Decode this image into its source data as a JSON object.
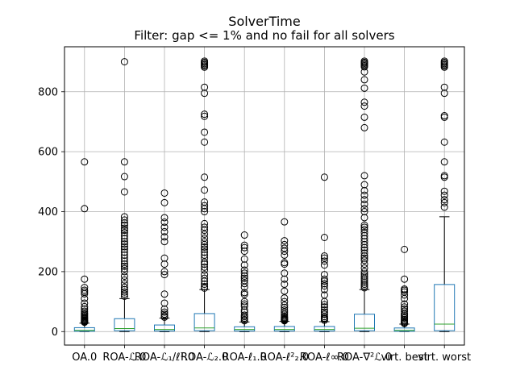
{
  "chart_data": {
    "type": "box",
    "title": "SolverTime",
    "subtitle": "Filter: gap <= 1% and no fail for all solvers",
    "xlabel": "",
    "ylabel": "",
    "ylim": [
      -45,
      950
    ],
    "yticks": [
      0,
      200,
      400,
      600,
      800
    ],
    "grid": true,
    "colors": {
      "box": "#1f77b4",
      "median": "#2ca02c",
      "whisker": "#000000",
      "flier": "#000000",
      "grid": "#b0b0b0"
    },
    "categories": [
      "OA.0",
      "ROA-ℒ.0",
      "ROA-ℒ₁/ℓ¹.0",
      "ROA-ℒ₂.0",
      "ROA-ℓ₁.0",
      "ROA-ℓ²₂.0",
      "ROA-ℓ∞.0",
      "ROA-∇²ℒ.0",
      "virt. best",
      "virt. worst"
    ],
    "boxes": [
      {
        "label": "OA.0",
        "whislo": 0,
        "q1": 1,
        "med": 4,
        "q3": 13,
        "whishi": 28,
        "fliers": [
          566,
          410,
          175,
          147,
          138,
          132,
          126,
          110,
          95,
          83,
          75,
          68,
          62,
          58,
          54,
          50,
          47,
          44,
          41,
          38,
          36,
          34,
          32,
          31
        ]
      },
      {
        "label": "ROA-ℒ.0",
        "whislo": 0,
        "q1": 3,
        "med": 10,
        "q3": 43,
        "whishi": 110,
        "fliers": [
          900,
          566,
          517,
          466,
          383,
          372,
          362,
          355,
          345,
          338,
          330,
          320,
          310,
          300,
          292,
          283,
          275,
          265,
          255,
          245,
          235,
          225,
          218,
          210,
          200,
          185,
          172,
          160,
          148,
          140,
          132,
          125,
          118
        ]
      },
      {
        "label": "ROA-ℒ₁/ℓ¹.0",
        "whislo": 0,
        "q1": 2,
        "med": 7,
        "q3": 22,
        "whishi": 45,
        "fliers": [
          462,
          430,
          380,
          365,
          348,
          333,
          316,
          300,
          245,
          225,
          200,
          190,
          125,
          95,
          75,
          65,
          58,
          52,
          48
        ]
      },
      {
        "label": "ROA-ℒ₂.0",
        "whislo": 0,
        "q1": 3,
        "med": 12,
        "q3": 60,
        "whishi": 140,
        "fliers": [
          902,
          898,
          894,
          890,
          886,
          882,
          815,
          795,
          725,
          718,
          665,
          632,
          515,
          472,
          432,
          420,
          410,
          400,
          360,
          348,
          338,
          325,
          312,
          300,
          290,
          282,
          275,
          265,
          255,
          245,
          232,
          225,
          215,
          205,
          190,
          178,
          168,
          158,
          150,
          145
        ]
      },
      {
        "label": "ROA-ℓ₁.0",
        "whislo": 0,
        "q1": 2,
        "med": 7,
        "q3": 16,
        "whishi": 32,
        "fliers": [
          322,
          288,
          280,
          268,
          242,
          222,
          205,
          195,
          185,
          178,
          170,
          160,
          148,
          130,
          124,
          100,
          92,
          85,
          72,
          65,
          55,
          50,
          45,
          40,
          36
        ]
      },
      {
        "label": "ROA-ℓ²₂.0",
        "whislo": 0,
        "q1": 2,
        "med": 7,
        "q3": 17,
        "whishi": 34,
        "fliers": [
          366,
          303,
          290,
          278,
          268,
          255,
          230,
          225,
          195,
          175,
          158,
          135,
          112,
          100,
          88,
          80,
          72,
          65,
          58,
          52,
          48,
          45,
          42,
          40,
          38,
          36
        ]
      },
      {
        "label": "ROA-ℓ∞.0",
        "whislo": 0,
        "q1": 2,
        "med": 7,
        "q3": 17,
        "whishi": 33,
        "fliers": [
          515,
          314,
          252,
          245,
          235,
          222,
          190,
          175,
          168,
          160,
          152,
          140,
          122,
          100,
          90,
          82,
          72,
          65,
          58,
          50,
          45,
          42,
          38
        ]
      },
      {
        "label": "ROA-∇²ℒ.0",
        "whislo": 0,
        "q1": 3,
        "med": 11,
        "q3": 58,
        "whishi": 140,
        "fliers": [
          902,
          898,
          895,
          891,
          887,
          883,
          866,
          840,
          812,
          765,
          752,
          715,
          680,
          520,
          490,
          470,
          455,
          440,
          425,
          410,
          400,
          380,
          355,
          348,
          340,
          330,
          320,
          310,
          300,
          290,
          280,
          272,
          262,
          252,
          245,
          238,
          225,
          212,
          200,
          192,
          185,
          178,
          172,
          165,
          158,
          152,
          146
        ]
      },
      {
        "label": "virt. best",
        "whislo": 0,
        "q1": 1,
        "med": 4,
        "q3": 12,
        "whishi": 25,
        "fliers": [
          274,
          175,
          142,
          138,
          132,
          122,
          110,
          92,
          82,
          75,
          68,
          60,
          55,
          50,
          45,
          40,
          36,
          32,
          29,
          27
        ]
      },
      {
        "label": "virt. worst",
        "whislo": 0,
        "q1": 3,
        "med": 25,
        "q3": 157,
        "whishi": 383,
        "fliers": [
          902,
          898,
          894,
          890,
          886,
          882,
          815,
          795,
          720,
          715,
          632,
          566,
          520,
          515,
          468,
          455,
          440,
          430,
          415
        ]
      }
    ]
  }
}
